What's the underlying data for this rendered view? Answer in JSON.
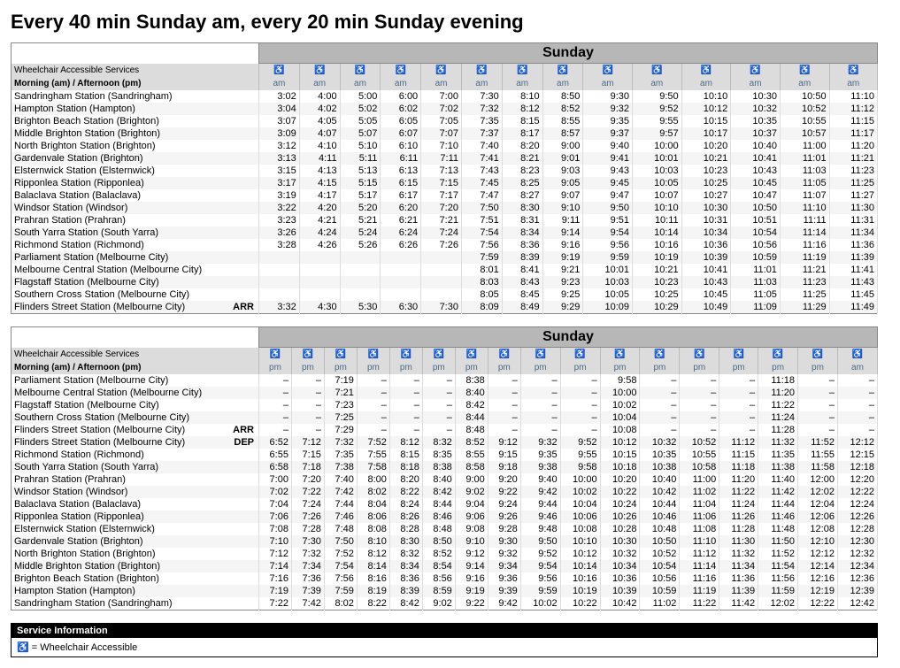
{
  "title": "Every 40 min Sunday am, every 20 min Sunday evening",
  "wheelchair_icon": "♿",
  "wheelchair_icon_color": "#4a6a8a",
  "table1": {
    "day_label": "Sunday",
    "header_row1_left": "Wheelchair Accessible Services",
    "header_row2_left": "Morning (am) / Afternoon (pm)",
    "num_cols": 14,
    "periods": [
      "am",
      "am",
      "am",
      "am",
      "am",
      "am",
      "am",
      "am",
      "am",
      "am",
      "am",
      "am",
      "am",
      "am"
    ],
    "stations": [
      {
        "name": "Sandringham Station (Sandringham)",
        "flag": "",
        "times": [
          "3:02",
          "4:00",
          "5:00",
          "6:00",
          "7:00",
          "7:30",
          "8:10",
          "8:50",
          "9:30",
          "9:50",
          "10:10",
          "10:30",
          "10:50",
          "11:10"
        ]
      },
      {
        "name": "Hampton Station (Hampton)",
        "flag": "",
        "times": [
          "3:04",
          "4:02",
          "5:02",
          "6:02",
          "7:02",
          "7:32",
          "8:12",
          "8:52",
          "9:32",
          "9:52",
          "10:12",
          "10:32",
          "10:52",
          "11:12"
        ]
      },
      {
        "name": "Brighton Beach Station (Brighton)",
        "flag": "",
        "times": [
          "3:07",
          "4:05",
          "5:05",
          "6:05",
          "7:05",
          "7:35",
          "8:15",
          "8:55",
          "9:35",
          "9:55",
          "10:15",
          "10:35",
          "10:55",
          "11:15"
        ]
      },
      {
        "name": "Middle Brighton Station (Brighton)",
        "flag": "",
        "times": [
          "3:09",
          "4:07",
          "5:07",
          "6:07",
          "7:07",
          "7:37",
          "8:17",
          "8:57",
          "9:37",
          "9:57",
          "10:17",
          "10:37",
          "10:57",
          "11:17"
        ]
      },
      {
        "name": "North Brighton Station (Brighton)",
        "flag": "",
        "times": [
          "3:12",
          "4:10",
          "5:10",
          "6:10",
          "7:10",
          "7:40",
          "8:20",
          "9:00",
          "9:40",
          "10:00",
          "10:20",
          "10:40",
          "11:00",
          "11:20"
        ]
      },
      {
        "name": "Gardenvale Station (Brighton)",
        "flag": "",
        "times": [
          "3:13",
          "4:11",
          "5:11",
          "6:11",
          "7:11",
          "7:41",
          "8:21",
          "9:01",
          "9:41",
          "10:01",
          "10:21",
          "10:41",
          "11:01",
          "11:21"
        ]
      },
      {
        "name": "Elsternwick Station (Elsternwick)",
        "flag": "",
        "times": [
          "3:15",
          "4:13",
          "5:13",
          "6:13",
          "7:13",
          "7:43",
          "8:23",
          "9:03",
          "9:43",
          "10:03",
          "10:23",
          "10:43",
          "11:03",
          "11:23"
        ]
      },
      {
        "name": "Ripponlea Station (Ripponlea)",
        "flag": "",
        "times": [
          "3:17",
          "4:15",
          "5:15",
          "6:15",
          "7:15",
          "7:45",
          "8:25",
          "9:05",
          "9:45",
          "10:05",
          "10:25",
          "10:45",
          "11:05",
          "11:25"
        ]
      },
      {
        "name": "Balaclava Station (Balaclava)",
        "flag": "",
        "times": [
          "3:19",
          "4:17",
          "5:17",
          "6:17",
          "7:17",
          "7:47",
          "8:27",
          "9:07",
          "9:47",
          "10:07",
          "10:27",
          "10:47",
          "11:07",
          "11:27"
        ]
      },
      {
        "name": "Windsor Station (Windsor)",
        "flag": "",
        "times": [
          "3:22",
          "4:20",
          "5:20",
          "6:20",
          "7:20",
          "7:50",
          "8:30",
          "9:10",
          "9:50",
          "10:10",
          "10:30",
          "10:50",
          "11:10",
          "11:30"
        ]
      },
      {
        "name": "Prahran Station (Prahran)",
        "flag": "",
        "times": [
          "3:23",
          "4:21",
          "5:21",
          "6:21",
          "7:21",
          "7:51",
          "8:31",
          "9:11",
          "9:51",
          "10:11",
          "10:31",
          "10:51",
          "11:11",
          "11:31"
        ]
      },
      {
        "name": "South Yarra Station (South Yarra)",
        "flag": "",
        "times": [
          "3:26",
          "4:24",
          "5:24",
          "6:24",
          "7:24",
          "7:54",
          "8:34",
          "9:14",
          "9:54",
          "10:14",
          "10:34",
          "10:54",
          "11:14",
          "11:34"
        ]
      },
      {
        "name": "Richmond Station (Richmond)",
        "flag": "",
        "times": [
          "3:28",
          "4:26",
          "5:26",
          "6:26",
          "7:26",
          "7:56",
          "8:36",
          "9:16",
          "9:56",
          "10:16",
          "10:36",
          "10:56",
          "11:16",
          "11:36"
        ]
      },
      {
        "name": "Parliament Station (Melbourne City)",
        "flag": "",
        "times": [
          "",
          "",
          "",
          "",
          "",
          "7:59",
          "8:39",
          "9:19",
          "9:59",
          "10:19",
          "10:39",
          "10:59",
          "11:19",
          "11:39"
        ]
      },
      {
        "name": "Melbourne Central Station (Melbourne City)",
        "flag": "",
        "times": [
          "",
          "",
          "",
          "",
          "",
          "8:01",
          "8:41",
          "9:21",
          "10:01",
          "10:21",
          "10:41",
          "11:01",
          "11:21",
          "11:41"
        ]
      },
      {
        "name": "Flagstaff Station (Melbourne City)",
        "flag": "",
        "times": [
          "",
          "",
          "",
          "",
          "",
          "8:03",
          "8:43",
          "9:23",
          "10:03",
          "10:23",
          "10:43",
          "11:03",
          "11:23",
          "11:43"
        ]
      },
      {
        "name": "Southern Cross Station (Melbourne City)",
        "flag": "",
        "times": [
          "",
          "",
          "",
          "",
          "",
          "8:05",
          "8:45",
          "9:25",
          "10:05",
          "10:25",
          "10:45",
          "11:05",
          "11:25",
          "11:45"
        ]
      },
      {
        "name": "Flinders Street Station (Melbourne City)",
        "flag": "ARR",
        "times": [
          "3:32",
          "4:30",
          "5:30",
          "6:30",
          "7:30",
          "8:09",
          "8:49",
          "9:29",
          "10:09",
          "10:29",
          "10:49",
          "11:09",
          "11:29",
          "11:49"
        ]
      }
    ]
  },
  "table2": {
    "day_label": "Sunday",
    "header_row1_left": "Wheelchair Accessible Services",
    "header_row2_left": "Morning (am) / Afternoon (pm)",
    "num_cols": 17,
    "periods": [
      "pm",
      "pm",
      "pm",
      "pm",
      "pm",
      "pm",
      "pm",
      "pm",
      "pm",
      "pm",
      "pm",
      "pm",
      "pm",
      "pm",
      "pm",
      "pm",
      "am"
    ],
    "stations": [
      {
        "name": "Parliament Station (Melbourne City)",
        "flag": "",
        "times": [
          "–",
          "–",
          "7:19",
          "–",
          "–",
          "–",
          "8:38",
          "–",
          "–",
          "–",
          "9:58",
          "–",
          "–",
          "–",
          "11:18",
          "–",
          "–"
        ]
      },
      {
        "name": "Melbourne Central Station (Melbourne City)",
        "flag": "",
        "times": [
          "–",
          "–",
          "7:21",
          "–",
          "–",
          "–",
          "8:40",
          "–",
          "–",
          "–",
          "10:00",
          "–",
          "–",
          "–",
          "11:20",
          "–",
          "–"
        ]
      },
      {
        "name": "Flagstaff Station (Melbourne City)",
        "flag": "",
        "times": [
          "–",
          "–",
          "7:23",
          "–",
          "–",
          "–",
          "8:42",
          "–",
          "–",
          "–",
          "10:02",
          "–",
          "–",
          "–",
          "11:22",
          "–",
          "–"
        ]
      },
      {
        "name": "Southern Cross Station (Melbourne City)",
        "flag": "",
        "times": [
          "–",
          "–",
          "7:25",
          "–",
          "–",
          "–",
          "8:44",
          "–",
          "–",
          "–",
          "10:04",
          "–",
          "–",
          "–",
          "11:24",
          "–",
          "–"
        ]
      },
      {
        "name": "Flinders Street Station (Melbourne City)",
        "flag": "ARR",
        "times": [
          "–",
          "–",
          "7:29",
          "–",
          "–",
          "–",
          "8:48",
          "–",
          "–",
          "–",
          "10:08",
          "–",
          "–",
          "–",
          "11:28",
          "–",
          "–"
        ]
      },
      {
        "name": "Flinders Street Station (Melbourne City)",
        "flag": "DEP",
        "times": [
          "6:52",
          "7:12",
          "7:32",
          "7:52",
          "8:12",
          "8:32",
          "8:52",
          "9:12",
          "9:32",
          "9:52",
          "10:12",
          "10:32",
          "10:52",
          "11:12",
          "11:32",
          "11:52",
          "12:12"
        ]
      },
      {
        "name": "Richmond Station (Richmond)",
        "flag": "",
        "times": [
          "6:55",
          "7:15",
          "7:35",
          "7:55",
          "8:15",
          "8:35",
          "8:55",
          "9:15",
          "9:35",
          "9:55",
          "10:15",
          "10:35",
          "10:55",
          "11:15",
          "11:35",
          "11:55",
          "12:15"
        ]
      },
      {
        "name": "South Yarra Station (South Yarra)",
        "flag": "",
        "times": [
          "6:58",
          "7:18",
          "7:38",
          "7:58",
          "8:18",
          "8:38",
          "8:58",
          "9:18",
          "9:38",
          "9:58",
          "10:18",
          "10:38",
          "10:58",
          "11:18",
          "11:38",
          "11:58",
          "12:18"
        ]
      },
      {
        "name": "Prahran Station (Prahran)",
        "flag": "",
        "times": [
          "7:00",
          "7:20",
          "7:40",
          "8:00",
          "8:20",
          "8:40",
          "9:00",
          "9:20",
          "9:40",
          "10:00",
          "10:20",
          "10:40",
          "11:00",
          "11:20",
          "11:40",
          "12:00",
          "12:20"
        ]
      },
      {
        "name": "Windsor Station (Windsor)",
        "flag": "",
        "times": [
          "7:02",
          "7:22",
          "7:42",
          "8:02",
          "8:22",
          "8:42",
          "9:02",
          "9:22",
          "9:42",
          "10:02",
          "10:22",
          "10:42",
          "11:02",
          "11:22",
          "11:42",
          "12:02",
          "12:22"
        ]
      },
      {
        "name": "Balaclava Station (Balaclava)",
        "flag": "",
        "times": [
          "7:04",
          "7:24",
          "7:44",
          "8:04",
          "8:24",
          "8:44",
          "9:04",
          "9:24",
          "9:44",
          "10:04",
          "10:24",
          "10:44",
          "11:04",
          "11:24",
          "11:44",
          "12:04",
          "12:24"
        ]
      },
      {
        "name": "Ripponlea Station (Ripponlea)",
        "flag": "",
        "times": [
          "7:06",
          "7:26",
          "7:46",
          "8:06",
          "8:26",
          "8:46",
          "9:06",
          "9:26",
          "9:46",
          "10:06",
          "10:26",
          "10:46",
          "11:06",
          "11:26",
          "11:46",
          "12:06",
          "12:26"
        ]
      },
      {
        "name": "Elsternwick Station (Elsternwick)",
        "flag": "",
        "times": [
          "7:08",
          "7:28",
          "7:48",
          "8:08",
          "8:28",
          "8:48",
          "9:08",
          "9:28",
          "9:48",
          "10:08",
          "10:28",
          "10:48",
          "11:08",
          "11:28",
          "11:48",
          "12:08",
          "12:28"
        ]
      },
      {
        "name": "Gardenvale Station (Brighton)",
        "flag": "",
        "times": [
          "7:10",
          "7:30",
          "7:50",
          "8:10",
          "8:30",
          "8:50",
          "9:10",
          "9:30",
          "9:50",
          "10:10",
          "10:30",
          "10:50",
          "11:10",
          "11:30",
          "11:50",
          "12:10",
          "12:30"
        ]
      },
      {
        "name": "North Brighton Station (Brighton)",
        "flag": "",
        "times": [
          "7:12",
          "7:32",
          "7:52",
          "8:12",
          "8:32",
          "8:52",
          "9:12",
          "9:32",
          "9:52",
          "10:12",
          "10:32",
          "10:52",
          "11:12",
          "11:32",
          "11:52",
          "12:12",
          "12:32"
        ]
      },
      {
        "name": "Middle Brighton Station (Brighton)",
        "flag": "",
        "times": [
          "7:14",
          "7:34",
          "7:54",
          "8:14",
          "8:34",
          "8:54",
          "9:14",
          "9:34",
          "9:54",
          "10:14",
          "10:34",
          "10:54",
          "11:14",
          "11:34",
          "11:54",
          "12:14",
          "12:34"
        ]
      },
      {
        "name": "Brighton Beach Station (Brighton)",
        "flag": "",
        "times": [
          "7:16",
          "7:36",
          "7:56",
          "8:16",
          "8:36",
          "8:56",
          "9:16",
          "9:36",
          "9:56",
          "10:16",
          "10:36",
          "10:56",
          "11:16",
          "11:36",
          "11:56",
          "12:16",
          "12:36"
        ]
      },
      {
        "name": "Hampton Station (Hampton)",
        "flag": "",
        "times": [
          "7:19",
          "7:39",
          "7:59",
          "8:19",
          "8:39",
          "8:59",
          "9:19",
          "9:39",
          "9:59",
          "10:19",
          "10:39",
          "10:59",
          "11:19",
          "11:39",
          "11:59",
          "12:19",
          "12:39"
        ]
      },
      {
        "name": "Sandringham Station (Sandringham)",
        "flag": "",
        "times": [
          "7:22",
          "7:42",
          "8:02",
          "8:22",
          "8:42",
          "9:02",
          "9:22",
          "9:42",
          "10:02",
          "10:22",
          "10:42",
          "11:02",
          "11:22",
          "11:42",
          "12:02",
          "12:22",
          "12:42"
        ]
      }
    ]
  },
  "service_info": {
    "header": "Service Information",
    "legend": "= Wheelchair Accessible"
  }
}
